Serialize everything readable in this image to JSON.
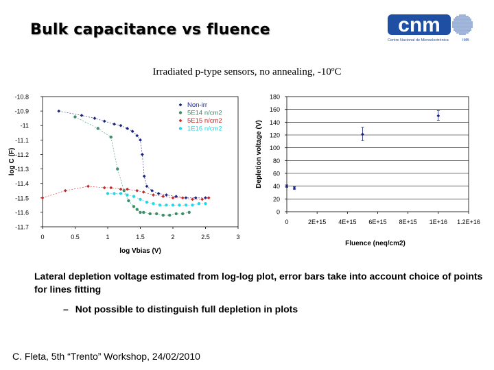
{
  "slide": {
    "title": "Bulk capacitance vs fluence",
    "subtitle": "Irradiated p-type sensors, no annealing, -10ºC",
    "caption": "Lateral depletion voltage estimated from log-log plot, error bars take into account choice of points for lines fitting",
    "bullet_dash": "–",
    "bullet": "Not possible to distinguish full depletion in plots",
    "footer": "C. Fleta, 5th “Trento” Workshop, 24/02/2010"
  },
  "logo": {
    "wordmark": "cnm",
    "tagline": "Centre Nacional de Microelectrònica",
    "subtag": "IMB",
    "color": "#1f4fa3"
  },
  "chart_data": [
    {
      "type": "scatter",
      "xlabel": "log Vbias (V)",
      "ylabel": "log C (F)",
      "xlim": [
        0,
        3
      ],
      "ylim": [
        -11.7,
        -10.8
      ],
      "x_ticks": [
        0,
        0.5,
        1,
        1.5,
        2,
        2.5,
        3
      ],
      "x_tick_labels": [
        "0",
        "0.5",
        "1",
        "1.5",
        "2",
        "2.5",
        "3"
      ],
      "y_ticks": [
        -10.8,
        -10.9,
        -11,
        -11.1,
        -11.2,
        -11.3,
        -11.4,
        -11.5,
        -11.6,
        -11.7
      ],
      "y_tick_labels": [
        "-10.8",
        "-10.9",
        "-11",
        "-11.1",
        "-11.2",
        "-11.3",
        "-11.4",
        "-11.5",
        "-11.6",
        "-11.7"
      ],
      "legend_position": "top-right",
      "series": [
        {
          "name": "Non-irr",
          "color": "#1a237e",
          "x": [
            0.25,
            0.6,
            0.8,
            0.95,
            1.1,
            1.2,
            1.3,
            1.38,
            1.45,
            1.5,
            1.53,
            1.56,
            1.6,
            1.68,
            1.78,
            1.9,
            2.05,
            2.2,
            2.35,
            2.5
          ],
          "y": [
            -10.9,
            -10.93,
            -10.95,
            -10.97,
            -10.99,
            -11.0,
            -11.02,
            -11.04,
            -11.07,
            -11.1,
            -11.2,
            -11.35,
            -11.42,
            -11.45,
            -11.47,
            -11.48,
            -11.49,
            -11.5,
            -11.5,
            -11.5
          ]
        },
        {
          "name": "5E14 n/cm2",
          "color": "#3e8e6a",
          "x": [
            0.5,
            0.85,
            1.05,
            1.15,
            1.25,
            1.32,
            1.4,
            1.45,
            1.5,
            1.55,
            1.65,
            1.75,
            1.85,
            1.95,
            2.05,
            2.15,
            2.25
          ],
          "y": [
            -10.94,
            -11.02,
            -11.08,
            -11.3,
            -11.45,
            -11.52,
            -11.56,
            -11.58,
            -11.6,
            -11.6,
            -11.61,
            -11.61,
            -11.62,
            -11.62,
            -11.61,
            -11.61,
            -11.6
          ]
        },
        {
          "name": "5E15 n/cm2",
          "color": "#c62828",
          "x": [
            0,
            0.35,
            0.7,
            0.95,
            1.05,
            1.2,
            1.3,
            1.45,
            1.55,
            1.7,
            1.85,
            2.0,
            2.15,
            2.3,
            2.45,
            2.55
          ],
          "y": [
            -11.5,
            -11.45,
            -11.42,
            -11.43,
            -11.43,
            -11.44,
            -11.44,
            -11.45,
            -11.46,
            -11.48,
            -11.49,
            -11.5,
            -11.5,
            -11.51,
            -11.51,
            -11.5
          ]
        },
        {
          "name": "1E16 n/cm2",
          "color": "#26d7e8",
          "x": [
            1.0,
            1.1,
            1.2,
            1.3,
            1.4,
            1.5,
            1.6,
            1.7,
            1.8,
            1.9,
            2.0,
            2.1,
            2.2,
            2.3,
            2.4,
            2.5
          ],
          "y": [
            -11.47,
            -11.47,
            -11.47,
            -11.48,
            -11.49,
            -11.51,
            -11.53,
            -11.54,
            -11.55,
            -11.55,
            -11.55,
            -11.55,
            -11.55,
            -11.55,
            -11.54,
            -11.54
          ]
        }
      ]
    },
    {
      "type": "scatter",
      "xlabel": "Fluence (neq/cm2)",
      "ylabel": "Depletion voltage (V)",
      "xlim": [
        0,
        1.2e+16
      ],
      "ylim": [
        0,
        180
      ],
      "x_ticks": [
        0,
        2000000000000000.0,
        4000000000000000.0,
        6000000000000000.0,
        8000000000000000.0,
        1e+16,
        1.2e+16
      ],
      "x_tick_labels": [
        "0",
        "2E+15",
        "4E+15",
        "6E+15",
        "8E+15",
        "1E+16",
        "1.2E+16"
      ],
      "y_ticks": [
        0,
        20,
        40,
        60,
        80,
        100,
        120,
        140,
        160,
        180
      ],
      "y_tick_labels": [
        "0",
        "20",
        "40",
        "60",
        "80",
        "100",
        "120",
        "140",
        "160",
        "180"
      ],
      "grid": "horizontal",
      "points": [
        {
          "x": 0,
          "y": 40,
          "err_low": 38,
          "err_high": 42
        },
        {
          "x": 500000000000000.0,
          "y": 37,
          "err_low": 35,
          "err_high": 39
        },
        {
          "x": 5000000000000000.0,
          "y": 121,
          "err_low": 111,
          "err_high": 132
        },
        {
          "x": 1e+16,
          "y": 150,
          "err_low": 143,
          "err_high": 158
        }
      ],
      "color": "#1a237e"
    }
  ]
}
